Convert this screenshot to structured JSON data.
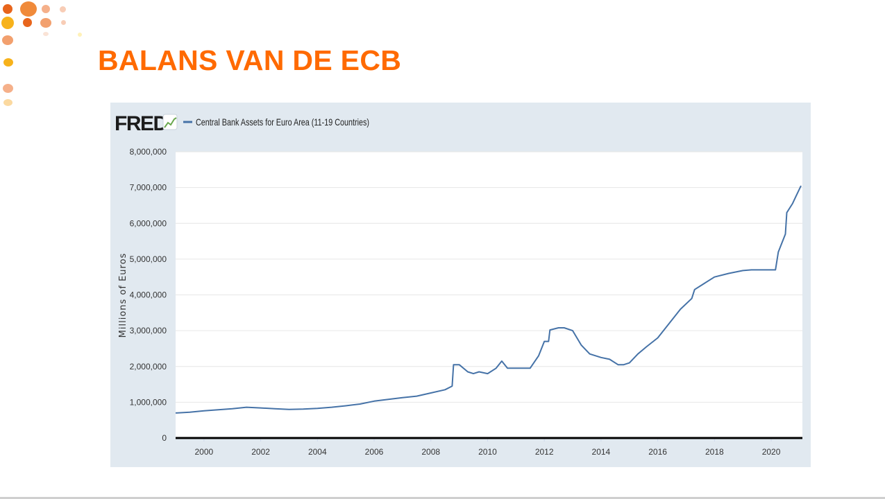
{
  "slide": {
    "title": "BALANS VAN DE ECB"
  },
  "brand": {
    "logo_text": "FRED",
    "accent_color": "#ff6a00"
  },
  "chart_data": {
    "type": "line",
    "title": "",
    "legend": "Central Bank Assets for Euro Area (11-19 Countries)",
    "legend_position": "top-left",
    "ylabel": "Millions of Euros",
    "xlabel": "",
    "ylim": [
      0,
      8000000
    ],
    "xlim": [
      1999.0,
      2021.1
    ],
    "grid": true,
    "yticks": [
      "0",
      "1,000,000",
      "2,000,000",
      "3,000,000",
      "4,000,000",
      "5,000,000",
      "6,000,000",
      "7,000,000",
      "8,000,000"
    ],
    "xticks": [
      "2000",
      "2002",
      "2004",
      "2006",
      "2008",
      "2010",
      "2012",
      "2014",
      "2016",
      "2018",
      "2020"
    ],
    "series": [
      {
        "name": "Central Bank Assets for Euro Area (11-19 Countries)",
        "color": "#4572a7",
        "x": [
          1999.0,
          1999.5,
          2000.0,
          2000.5,
          2001.0,
          2001.5,
          2002.0,
          2002.5,
          2003.0,
          2003.5,
          2004.0,
          2004.5,
          2005.0,
          2005.5,
          2006.0,
          2006.5,
          2007.0,
          2007.5,
          2008.0,
          2008.5,
          2008.75,
          2008.8,
          2009.0,
          2009.3,
          2009.5,
          2009.7,
          2010.0,
          2010.3,
          2010.5,
          2010.7,
          2011.0,
          2011.3,
          2011.5,
          2011.8,
          2012.0,
          2012.15,
          2012.2,
          2012.5,
          2012.7,
          2013.0,
          2013.3,
          2013.6,
          2014.0,
          2014.3,
          2014.6,
          2014.8,
          2015.0,
          2015.3,
          2015.6,
          2016.0,
          2016.4,
          2016.8,
          2017.2,
          2017.3,
          2017.6,
          2018.0,
          2018.5,
          2019.0,
          2019.3,
          2019.6,
          2020.0,
          2020.15,
          2020.25,
          2020.5,
          2020.55,
          2020.75,
          2020.9,
          2021.05
        ],
        "values": [
          700000,
          720000,
          760000,
          790000,
          820000,
          860000,
          840000,
          820000,
          800000,
          810000,
          830000,
          860000,
          900000,
          950000,
          1030000,
          1080000,
          1130000,
          1170000,
          1260000,
          1350000,
          1450000,
          2050000,
          2050000,
          1850000,
          1800000,
          1850000,
          1800000,
          1950000,
          2150000,
          1950000,
          1950000,
          1950000,
          1950000,
          2300000,
          2700000,
          2700000,
          3020000,
          3080000,
          3080000,
          3000000,
          2600000,
          2350000,
          2250000,
          2200000,
          2050000,
          2050000,
          2100000,
          2350000,
          2550000,
          2800000,
          3200000,
          3600000,
          3900000,
          4150000,
          4300000,
          4500000,
          4600000,
          4680000,
          4700000,
          4700000,
          4700000,
          4700000,
          5200000,
          5700000,
          6300000,
          6550000,
          6800000,
          7050000
        ]
      }
    ]
  }
}
